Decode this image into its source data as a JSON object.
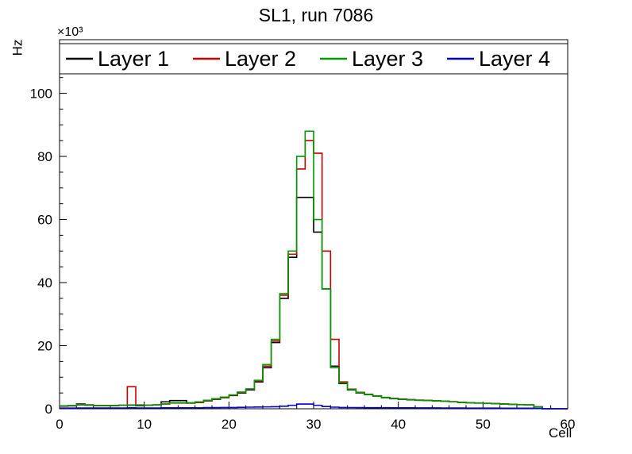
{
  "title": "SL1, run 7086",
  "axes": {
    "x": {
      "label": "Cell",
      "min": 0,
      "max": 60,
      "major_tick_step": 10,
      "minor_tick_step": 2
    },
    "y": {
      "label": "Hz",
      "multiplier": "×10³",
      "min": 0,
      "max": 117000,
      "major_tick_step": 20000,
      "minor_tick_step": 5000,
      "tick_divisor": 1000
    }
  },
  "legend": {
    "position": "top"
  },
  "chart_data": {
    "type": "line",
    "style": "step-histogram",
    "title": "SL1, run 7086",
    "xlabel": "Cell",
    "ylabel": "Hz",
    "y_multiplier": "×10³",
    "xlim": [
      0,
      60
    ],
    "ylim": [
      0,
      117000
    ],
    "bin_width": 1,
    "grid": false,
    "legend_position": "top",
    "series": [
      {
        "name": "Layer 1",
        "color": "#000000",
        "values": [
          900,
          1000,
          1500,
          1200,
          1000,
          1000,
          1000,
          1100,
          1100,
          1000,
          1100,
          1200,
          2200,
          2600,
          2600,
          1800,
          2000,
          2500,
          3000,
          3500,
          4200,
          5000,
          6000,
          8500,
          13000,
          21000,
          35000,
          48000,
          67000,
          67000,
          56000,
          38000,
          13500,
          8000,
          6000,
          5000,
          4500,
          4000,
          3500,
          3200,
          3000,
          2800,
          2700,
          2600,
          2500,
          2400,
          2200,
          2000,
          1900,
          1800,
          1700,
          1600,
          1500,
          1400,
          1300,
          1200,
          600,
          0,
          0,
          0
        ]
      },
      {
        "name": "Layer 2",
        "color": "#cc0000",
        "values": [
          800,
          900,
          1200,
          1100,
          1000,
          1000,
          1000,
          1100,
          7000,
          1200,
          1100,
          1200,
          1500,
          1800,
          1800,
          1800,
          2100,
          2600,
          3100,
          3600,
          4300,
          5200,
          6200,
          8800,
          13500,
          21500,
          36000,
          49000,
          76000,
          85000,
          81000,
          50000,
          22000,
          8500,
          6200,
          5200,
          4600,
          4100,
          3600,
          3300,
          3100,
          2900,
          2750,
          2650,
          2550,
          2450,
          2250,
          2050,
          1950,
          1850,
          1750,
          1650,
          1550,
          1450,
          1350,
          1250,
          650,
          0,
          0,
          0
        ]
      },
      {
        "name": "Layer 3",
        "color": "#009900",
        "values": [
          900,
          1000,
          1300,
          1100,
          1050,
          1050,
          1050,
          1150,
          1200,
          1150,
          1150,
          1250,
          1600,
          1900,
          1900,
          1900,
          2200,
          2700,
          3200,
          3700,
          4400,
          5300,
          6300,
          9000,
          14000,
          22000,
          36500,
          50000,
          80000,
          88000,
          60000,
          38000,
          13000,
          8200,
          6100,
          5100,
          4550,
          4050,
          3550,
          3250,
          3050,
          2850,
          2700,
          2600,
          2500,
          2400,
          2200,
          2000,
          1900,
          1800,
          1700,
          1600,
          1500,
          1400,
          1300,
          1200,
          600,
          0,
          0,
          0
        ]
      },
      {
        "name": "Layer 4",
        "color": "#0000cc",
        "values": [
          200,
          200,
          250,
          250,
          250,
          250,
          250,
          250,
          300,
          250,
          250,
          250,
          300,
          300,
          300,
          300,
          300,
          350,
          350,
          400,
          400,
          450,
          500,
          550,
          600,
          650,
          800,
          1100,
          1500,
          1500,
          1100,
          700,
          500,
          400,
          380,
          360,
          340,
          330,
          320,
          310,
          300,
          290,
          280,
          270,
          260,
          250,
          240,
          230,
          220,
          210,
          200,
          200,
          190,
          190,
          180,
          180,
          100,
          0,
          0,
          0
        ]
      }
    ]
  }
}
